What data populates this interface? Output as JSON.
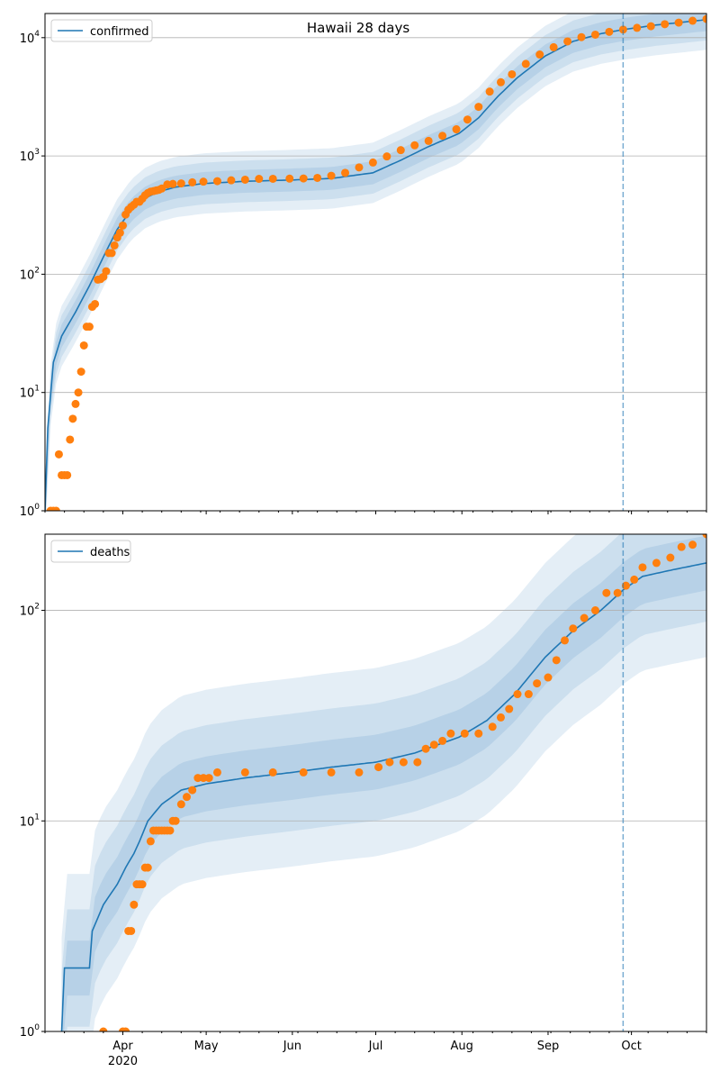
{
  "colors": {
    "model": "#1f77b4",
    "observed": "#ff7f0e",
    "band": "#1f77b4",
    "grid": "#b0b0b0",
    "cutoff": "#1f77b4"
  },
  "x_axis": {
    "ticks": [
      {
        "date": "2020-04-01",
        "label": "Apr",
        "sublabel": "2020"
      },
      {
        "date": "2020-05-01",
        "label": "May",
        "sublabel": ""
      },
      {
        "date": "2020-06-01",
        "label": "Jun",
        "sublabel": ""
      },
      {
        "date": "2020-07-01",
        "label": "Jul",
        "sublabel": ""
      },
      {
        "date": "2020-08-01",
        "label": "Aug",
        "sublabel": ""
      },
      {
        "date": "2020-09-01",
        "label": "Sep",
        "sublabel": ""
      },
      {
        "date": "2020-10-01",
        "label": "Oct",
        "sublabel": ""
      }
    ],
    "range": [
      "2020-03-04",
      "2020-10-28"
    ]
  },
  "chart_data": [
    {
      "type": "line",
      "title": "Hawaii 28 days",
      "yscale": "log",
      "ylim": [
        1,
        16000
      ],
      "yticks": [
        {
          "value": 1,
          "base": "10",
          "exp": "0"
        },
        {
          "value": 10,
          "base": "10",
          "exp": "1"
        },
        {
          "value": 100,
          "base": "10",
          "exp": "2"
        },
        {
          "value": 1000,
          "base": "10",
          "exp": "3"
        },
        {
          "value": 10000,
          "base": "10",
          "exp": "4"
        }
      ],
      "grid": true,
      "legend": {
        "position": "upper-left",
        "entries": [
          "confirmed"
        ]
      },
      "forecast_start": "2020-09-28",
      "series": [
        {
          "name": "confirmed",
          "kind": "model_line",
          "points": [
            [
              "2020-03-04",
              1
            ],
            [
              "2020-03-05",
              5
            ],
            [
              "2020-03-07",
              18
            ],
            [
              "2020-03-10",
              30
            ],
            [
              "2020-03-15",
              48
            ],
            [
              "2020-03-20",
              80
            ],
            [
              "2020-03-25",
              140
            ],
            [
              "2020-03-30",
              240
            ],
            [
              "2020-04-04",
              350
            ],
            [
              "2020-04-09",
              440
            ],
            [
              "2020-04-14",
              500
            ],
            [
              "2020-04-20",
              545
            ],
            [
              "2020-04-30",
              585
            ],
            [
              "2020-05-15",
              610
            ],
            [
              "2020-05-31",
              625
            ],
            [
              "2020-06-15",
              645
            ],
            [
              "2020-06-30",
              720
            ],
            [
              "2020-07-10",
              920
            ],
            [
              "2020-07-20",
              1200
            ],
            [
              "2020-07-31",
              1550
            ],
            [
              "2020-08-07",
              2100
            ],
            [
              "2020-08-14",
              3200
            ],
            [
              "2020-08-21",
              4600
            ],
            [
              "2020-08-31",
              7000
            ],
            [
              "2020-09-10",
              9300
            ],
            [
              "2020-09-20",
              10800
            ],
            [
              "2020-09-28",
              11700
            ],
            [
              "2020-10-10",
              12800
            ],
            [
              "2020-10-28",
              14200
            ]
          ]
        },
        {
          "name": "observed confirmed",
          "kind": "points",
          "points": [
            [
              "2020-03-06",
              1
            ],
            [
              "2020-03-07",
              1
            ],
            [
              "2020-03-08",
              1
            ],
            [
              "2020-03-09",
              3
            ],
            [
              "2020-03-10",
              2
            ],
            [
              "2020-03-11",
              2
            ],
            [
              "2020-03-12",
              2
            ],
            [
              "2020-03-13",
              4
            ],
            [
              "2020-03-14",
              6
            ],
            [
              "2020-03-15",
              8
            ],
            [
              "2020-03-16",
              10
            ],
            [
              "2020-03-17",
              15
            ],
            [
              "2020-03-18",
              25
            ],
            [
              "2020-03-19",
              36
            ],
            [
              "2020-03-20",
              36
            ],
            [
              "2020-03-21",
              53
            ],
            [
              "2020-03-22",
              56
            ],
            [
              "2020-03-23",
              90
            ],
            [
              "2020-03-24",
              91
            ],
            [
              "2020-03-25",
              95
            ],
            [
              "2020-03-26",
              106
            ],
            [
              "2020-03-27",
              151
            ],
            [
              "2020-03-28",
              151
            ],
            [
              "2020-03-29",
              175
            ],
            [
              "2020-03-30",
              204
            ],
            [
              "2020-03-31",
              224
            ],
            [
              "2020-04-01",
              258
            ],
            [
              "2020-04-02",
              319
            ],
            [
              "2020-04-03",
              351
            ],
            [
              "2020-04-04",
              371
            ],
            [
              "2020-04-05",
              387
            ],
            [
              "2020-04-06",
              410
            ],
            [
              "2020-04-07",
              410
            ],
            [
              "2020-04-08",
              435
            ],
            [
              "2020-04-09",
              465
            ],
            [
              "2020-04-10",
              486
            ],
            [
              "2020-04-11",
              499
            ],
            [
              "2020-04-12",
              504
            ],
            [
              "2020-04-13",
              511
            ],
            [
              "2020-04-14",
              517
            ],
            [
              "2020-04-15",
              530
            ],
            [
              "2020-04-17",
              574
            ],
            [
              "2020-04-19",
              580
            ],
            [
              "2020-04-22",
              586
            ],
            [
              "2020-04-26",
              598
            ],
            [
              "2020-04-30",
              606
            ],
            [
              "2020-05-05",
              612
            ],
            [
              "2020-05-10",
              622
            ],
            [
              "2020-05-15",
              630
            ],
            [
              "2020-05-20",
              640
            ],
            [
              "2020-05-25",
              641
            ],
            [
              "2020-05-31",
              643
            ],
            [
              "2020-06-05",
              645
            ],
            [
              "2020-06-10",
              652
            ],
            [
              "2020-06-15",
              680
            ],
            [
              "2020-06-20",
              720
            ],
            [
              "2020-06-25",
              800
            ],
            [
              "2020-06-30",
              880
            ],
            [
              "2020-07-05",
              990
            ],
            [
              "2020-07-10",
              1120
            ],
            [
              "2020-07-15",
              1230
            ],
            [
              "2020-07-20",
              1340
            ],
            [
              "2020-07-25",
              1480
            ],
            [
              "2020-07-30",
              1680
            ],
            [
              "2020-08-03",
              2030
            ],
            [
              "2020-08-07",
              2600
            ],
            [
              "2020-08-11",
              3500
            ],
            [
              "2020-08-15",
              4200
            ],
            [
              "2020-08-19",
              4900
            ],
            [
              "2020-08-24",
              6000
            ],
            [
              "2020-08-29",
              7200
            ],
            [
              "2020-09-03",
              8300
            ],
            [
              "2020-09-08",
              9300
            ],
            [
              "2020-09-13",
              10100
            ],
            [
              "2020-09-18",
              10600
            ],
            [
              "2020-09-23",
              11200
            ],
            [
              "2020-09-28",
              11700
            ],
            [
              "2020-10-03",
              12100
            ],
            [
              "2020-10-08",
              12500
            ],
            [
              "2020-10-13",
              13000
            ],
            [
              "2020-10-18",
              13400
            ],
            [
              "2020-10-23",
              13900
            ],
            [
              "2020-10-28",
              14400
            ]
          ]
        }
      ]
    },
    {
      "type": "line",
      "title": "",
      "yscale": "log",
      "ylim": [
        1,
        230
      ],
      "yticks": [
        {
          "value": 1,
          "base": "10",
          "exp": "0"
        },
        {
          "value": 10,
          "base": "10",
          "exp": "1"
        },
        {
          "value": 100,
          "base": "10",
          "exp": "2"
        }
      ],
      "grid": true,
      "legend": {
        "position": "upper-left",
        "entries": [
          "deaths"
        ]
      },
      "forecast_start": "2020-09-28",
      "series": [
        {
          "name": "deaths",
          "kind": "model_line",
          "points": [
            [
              "2020-03-10",
              1
            ],
            [
              "2020-03-11",
              2
            ],
            [
              "2020-03-20",
              2
            ],
            [
              "2020-03-21",
              3
            ],
            [
              "2020-03-25",
              4
            ],
            [
              "2020-03-30",
              5
            ],
            [
              "2020-04-02",
              6
            ],
            [
              "2020-04-05",
              7
            ],
            [
              "2020-04-07",
              8
            ],
            [
              "2020-04-10",
              10
            ],
            [
              "2020-04-15",
              12
            ],
            [
              "2020-04-22",
              14
            ],
            [
              "2020-05-01",
              15
            ],
            [
              "2020-05-15",
              16
            ],
            [
              "2020-06-01",
              17
            ],
            [
              "2020-06-15",
              18
            ],
            [
              "2020-07-01",
              19
            ],
            [
              "2020-07-15",
              21
            ],
            [
              "2020-07-31",
              25
            ],
            [
              "2020-08-10",
              30
            ],
            [
              "2020-08-20",
              40
            ],
            [
              "2020-08-31",
              60
            ],
            [
              "2020-09-10",
              80
            ],
            [
              "2020-09-20",
              100
            ],
            [
              "2020-09-28",
              125
            ],
            [
              "2020-10-05",
              145
            ],
            [
              "2020-10-15",
              155
            ],
            [
              "2020-10-28",
              168
            ]
          ]
        },
        {
          "name": "observed deaths",
          "kind": "points",
          "points": [
            [
              "2020-03-25",
              1
            ],
            [
              "2020-04-01",
              1
            ],
            [
              "2020-04-02",
              1
            ],
            [
              "2020-04-03",
              3
            ],
            [
              "2020-04-04",
              3
            ],
            [
              "2020-04-05",
              4
            ],
            [
              "2020-04-06",
              5
            ],
            [
              "2020-04-07",
              5
            ],
            [
              "2020-04-08",
              5
            ],
            [
              "2020-04-09",
              6
            ],
            [
              "2020-04-10",
              6
            ],
            [
              "2020-04-11",
              8
            ],
            [
              "2020-04-12",
              9
            ],
            [
              "2020-04-13",
              9
            ],
            [
              "2020-04-14",
              9
            ],
            [
              "2020-04-15",
              9
            ],
            [
              "2020-04-16",
              9
            ],
            [
              "2020-04-17",
              9
            ],
            [
              "2020-04-18",
              9
            ],
            [
              "2020-04-19",
              10
            ],
            [
              "2020-04-20",
              10
            ],
            [
              "2020-04-22",
              12
            ],
            [
              "2020-04-24",
              13
            ],
            [
              "2020-04-26",
              14
            ],
            [
              "2020-04-28",
              16
            ],
            [
              "2020-04-30",
              16
            ],
            [
              "2020-05-02",
              16
            ],
            [
              "2020-05-05",
              17
            ],
            [
              "2020-05-15",
              17
            ],
            [
              "2020-05-25",
              17
            ],
            [
              "2020-06-05",
              17
            ],
            [
              "2020-06-15",
              17
            ],
            [
              "2020-06-25",
              17
            ],
            [
              "2020-07-02",
              18
            ],
            [
              "2020-07-06",
              19
            ],
            [
              "2020-07-11",
              19
            ],
            [
              "2020-07-16",
              19
            ],
            [
              "2020-07-19",
              22
            ],
            [
              "2020-07-22",
              23
            ],
            [
              "2020-07-25",
              24
            ],
            [
              "2020-07-28",
              26
            ],
            [
              "2020-08-02",
              26
            ],
            [
              "2020-08-07",
              26
            ],
            [
              "2020-08-12",
              28
            ],
            [
              "2020-08-15",
              31
            ],
            [
              "2020-08-18",
              34
            ],
            [
              "2020-08-21",
              40
            ],
            [
              "2020-08-25",
              40
            ],
            [
              "2020-08-28",
              45
            ],
            [
              "2020-09-01",
              48
            ],
            [
              "2020-09-04",
              58
            ],
            [
              "2020-09-07",
              72
            ],
            [
              "2020-09-10",
              82
            ],
            [
              "2020-09-14",
              92
            ],
            [
              "2020-09-18",
              100
            ],
            [
              "2020-09-22",
              121
            ],
            [
              "2020-09-26",
              121
            ],
            [
              "2020-09-29",
              131
            ],
            [
              "2020-10-02",
              140
            ],
            [
              "2020-10-05",
              160
            ],
            [
              "2020-10-10",
              168
            ],
            [
              "2020-10-15",
              178
            ],
            [
              "2020-10-19",
              200
            ],
            [
              "2020-10-23",
              205
            ],
            [
              "2020-10-28",
              230
            ]
          ]
        }
      ]
    }
  ]
}
